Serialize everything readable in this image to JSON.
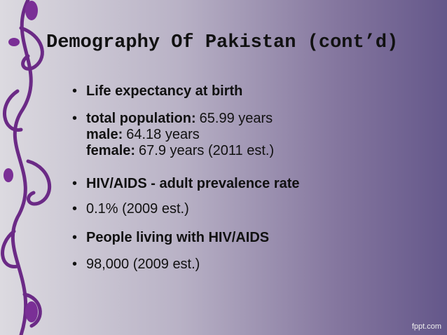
{
  "header": {
    "title": "Demography Of Pakistan (cont’d)"
  },
  "bullets": [
    {
      "lines": [
        {
          "bold": "Life expectancy at birth"
        }
      ]
    },
    {
      "lines": [
        {
          "bold": "total population:",
          "text": "65.99 years"
        },
        {
          "bold": "male:",
          "text": "64.18 years"
        },
        {
          "bold": "female:",
          "text": "67.9 years (2011 est.)"
        }
      ]
    },
    {
      "lines": [
        {
          "bold": "HIV/AIDS - adult prevalence rate"
        }
      ]
    },
    {
      "lines": [
        {
          "text": "0.1% (2009 est.)"
        }
      ]
    },
    {
      "lines": [
        {
          "bold": "People living with HIV/AIDS"
        }
      ]
    },
    {
      "lines": [
        {
          "text": "98,000 (2009 est.)"
        }
      ]
    }
  ],
  "footer": {
    "watermark": "fppt.com"
  }
}
